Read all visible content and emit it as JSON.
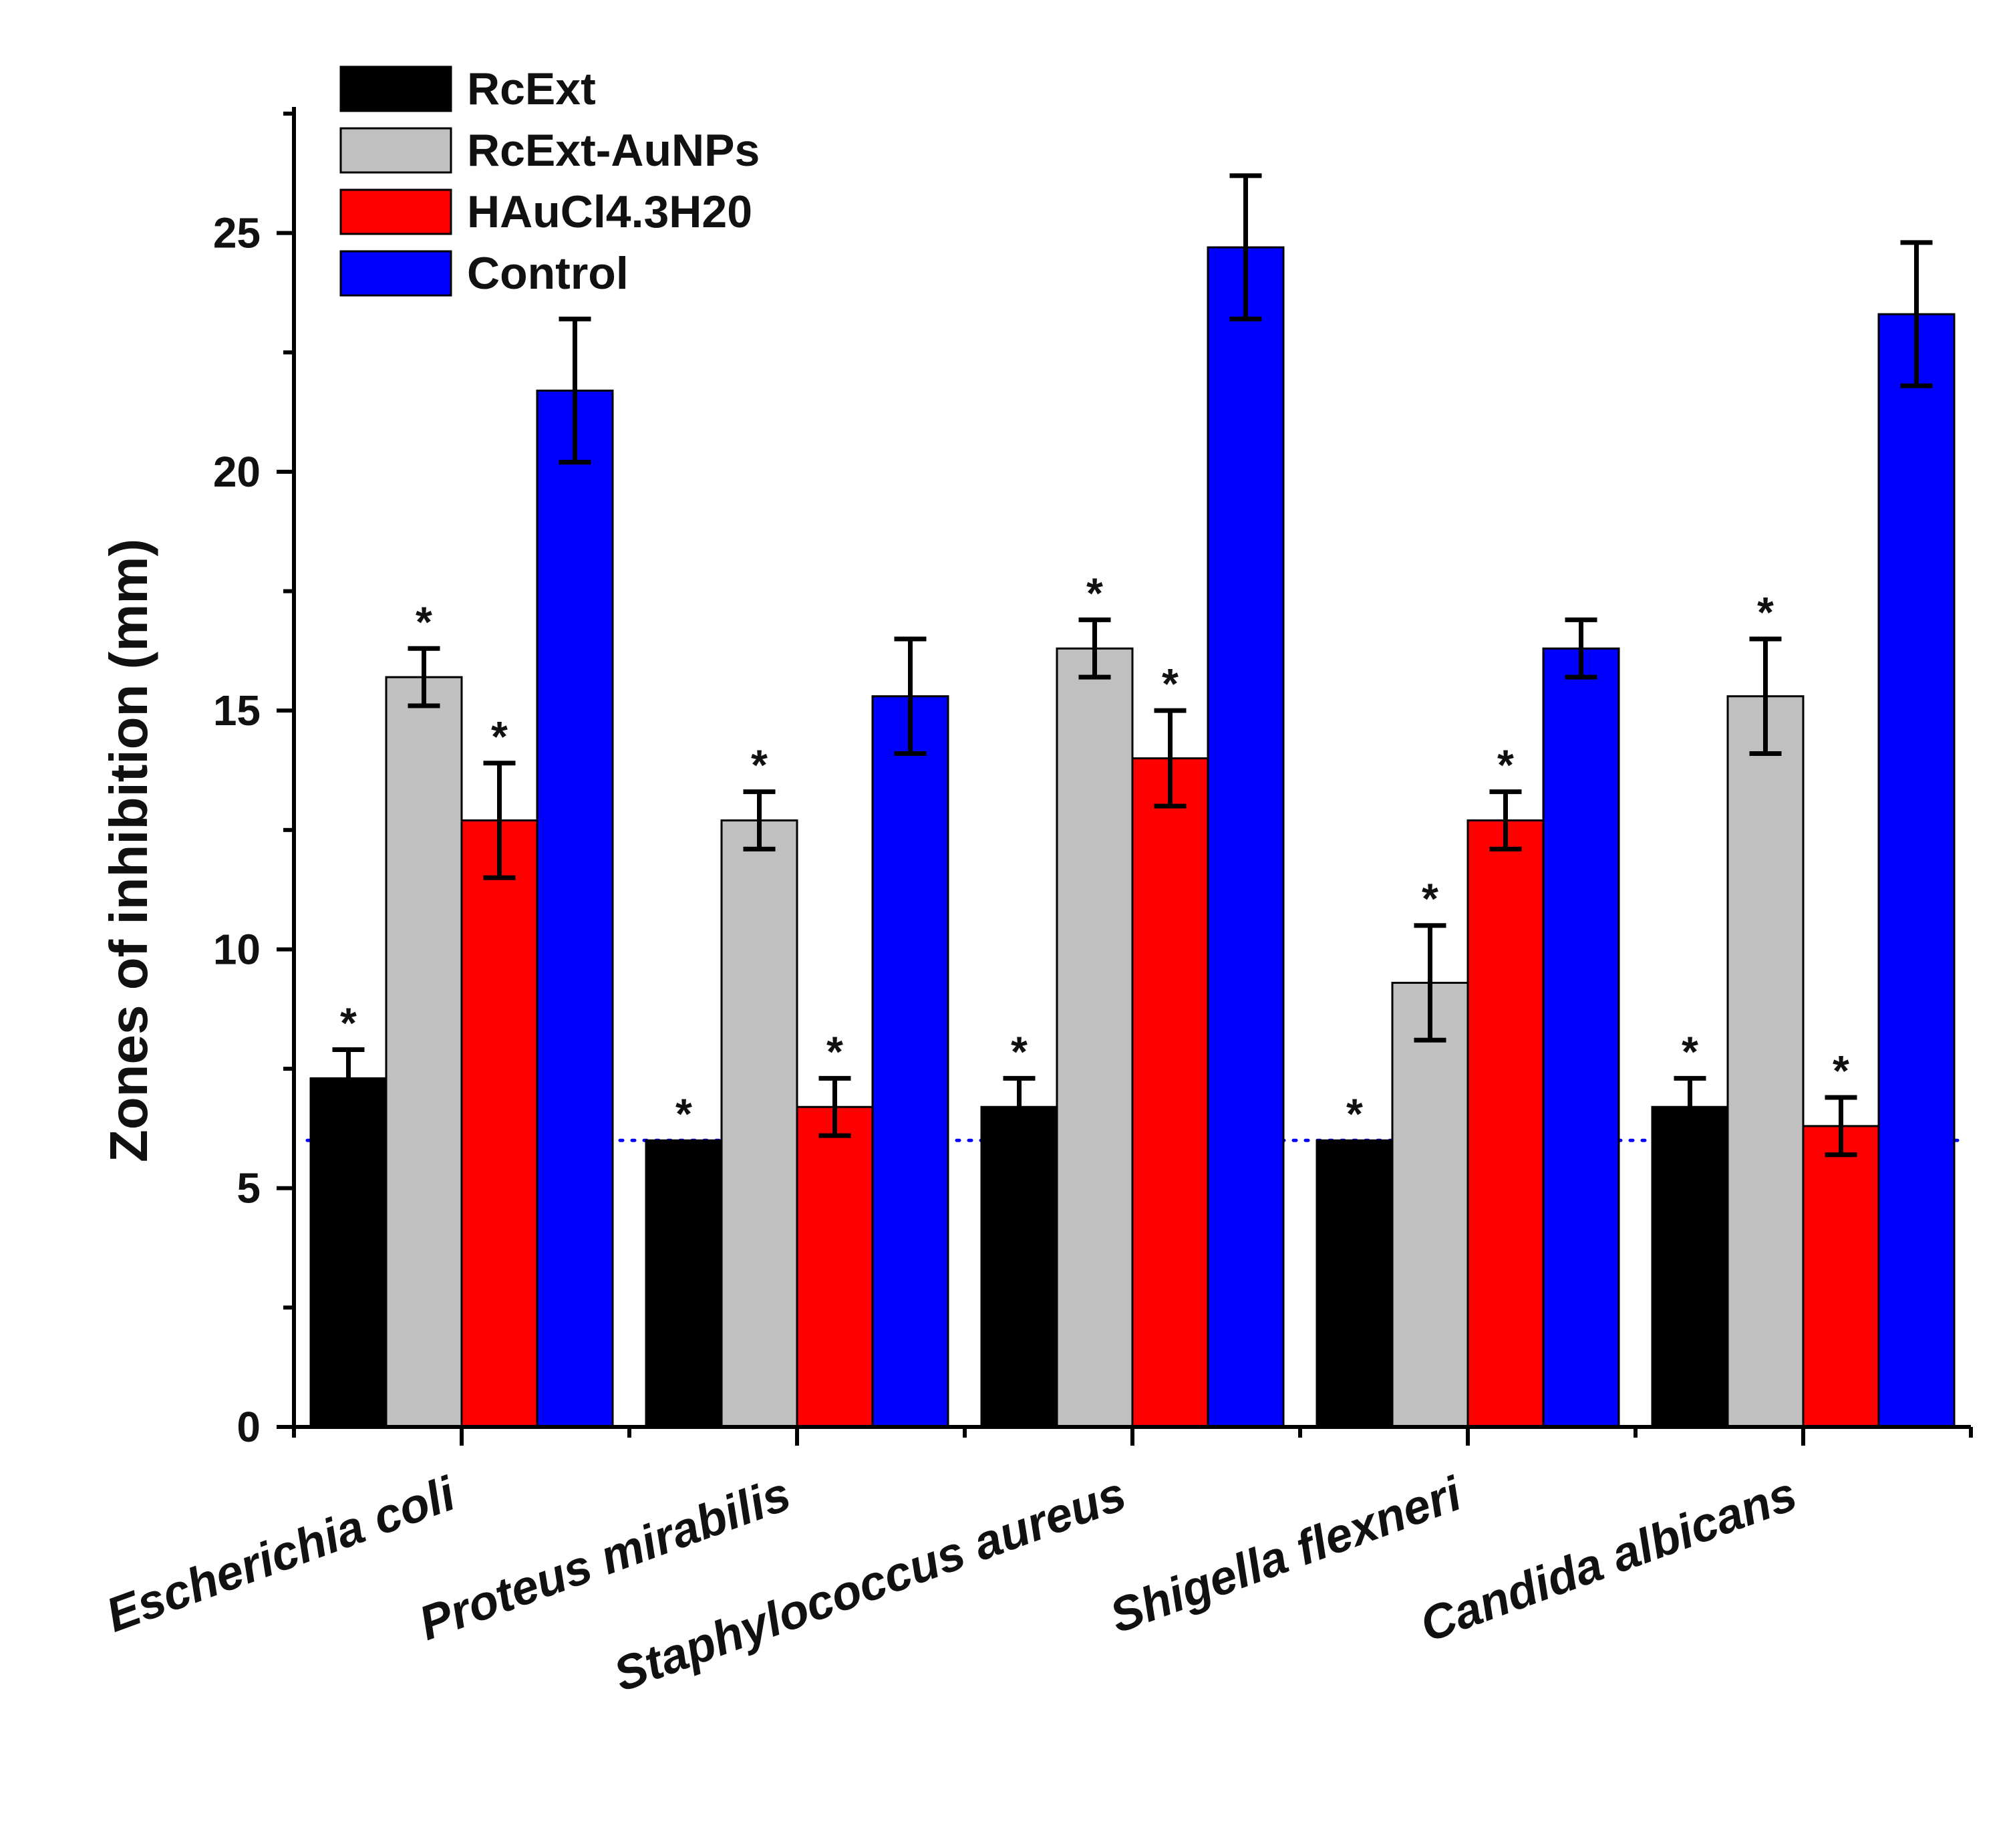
{
  "chart_data": {
    "type": "bar",
    "title": "",
    "xlabel": "",
    "ylabel": "Zones of inhibition (mm)",
    "ylim": [
      0,
      27.5
    ],
    "yticks": [
      0,
      5,
      10,
      15,
      20,
      25
    ],
    "yminor_step": 2.5,
    "categories": [
      "Escherichia coli",
      "Proteus mirabilis",
      "Staphylococcus aureus",
      "Shigella flexneri",
      "Candida albicans"
    ],
    "series": [
      {
        "name": "RcExt",
        "color": "#000000",
        "values": [
          7.3,
          6.0,
          6.7,
          6.0,
          6.7
        ],
        "errors": [
          0.6,
          0,
          0.6,
          0,
          0.6
        ],
        "significant": [
          true,
          true,
          true,
          true,
          true
        ]
      },
      {
        "name": "RcExt-AuNPs",
        "color": "#c0c0c0",
        "values": [
          15.7,
          12.7,
          16.3,
          9.3,
          15.3
        ],
        "errors": [
          0.6,
          0.6,
          0.6,
          1.2,
          1.2
        ],
        "significant": [
          true,
          true,
          true,
          true,
          true
        ]
      },
      {
        "name": "HAuCl4.3H20",
        "color": "#ff0000",
        "values": [
          12.7,
          6.7,
          14.0,
          12.7,
          6.3
        ],
        "errors": [
          1.2,
          0.6,
          1.0,
          0.6,
          0.6
        ],
        "significant": [
          true,
          true,
          true,
          true,
          true
        ]
      },
      {
        "name": "Control",
        "color": "#0000ff",
        "values": [
          21.7,
          15.3,
          24.7,
          16.3,
          23.3
        ],
        "errors": [
          1.5,
          1.2,
          1.5,
          0.6,
          1.5
        ],
        "significant": [
          false,
          false,
          false,
          false,
          false
        ]
      }
    ],
    "reference_line": {
      "y": 6.0,
      "style": "dotted",
      "color": "#0000ff"
    },
    "significance_marker": "*",
    "legend": {
      "position": "top-left"
    }
  }
}
